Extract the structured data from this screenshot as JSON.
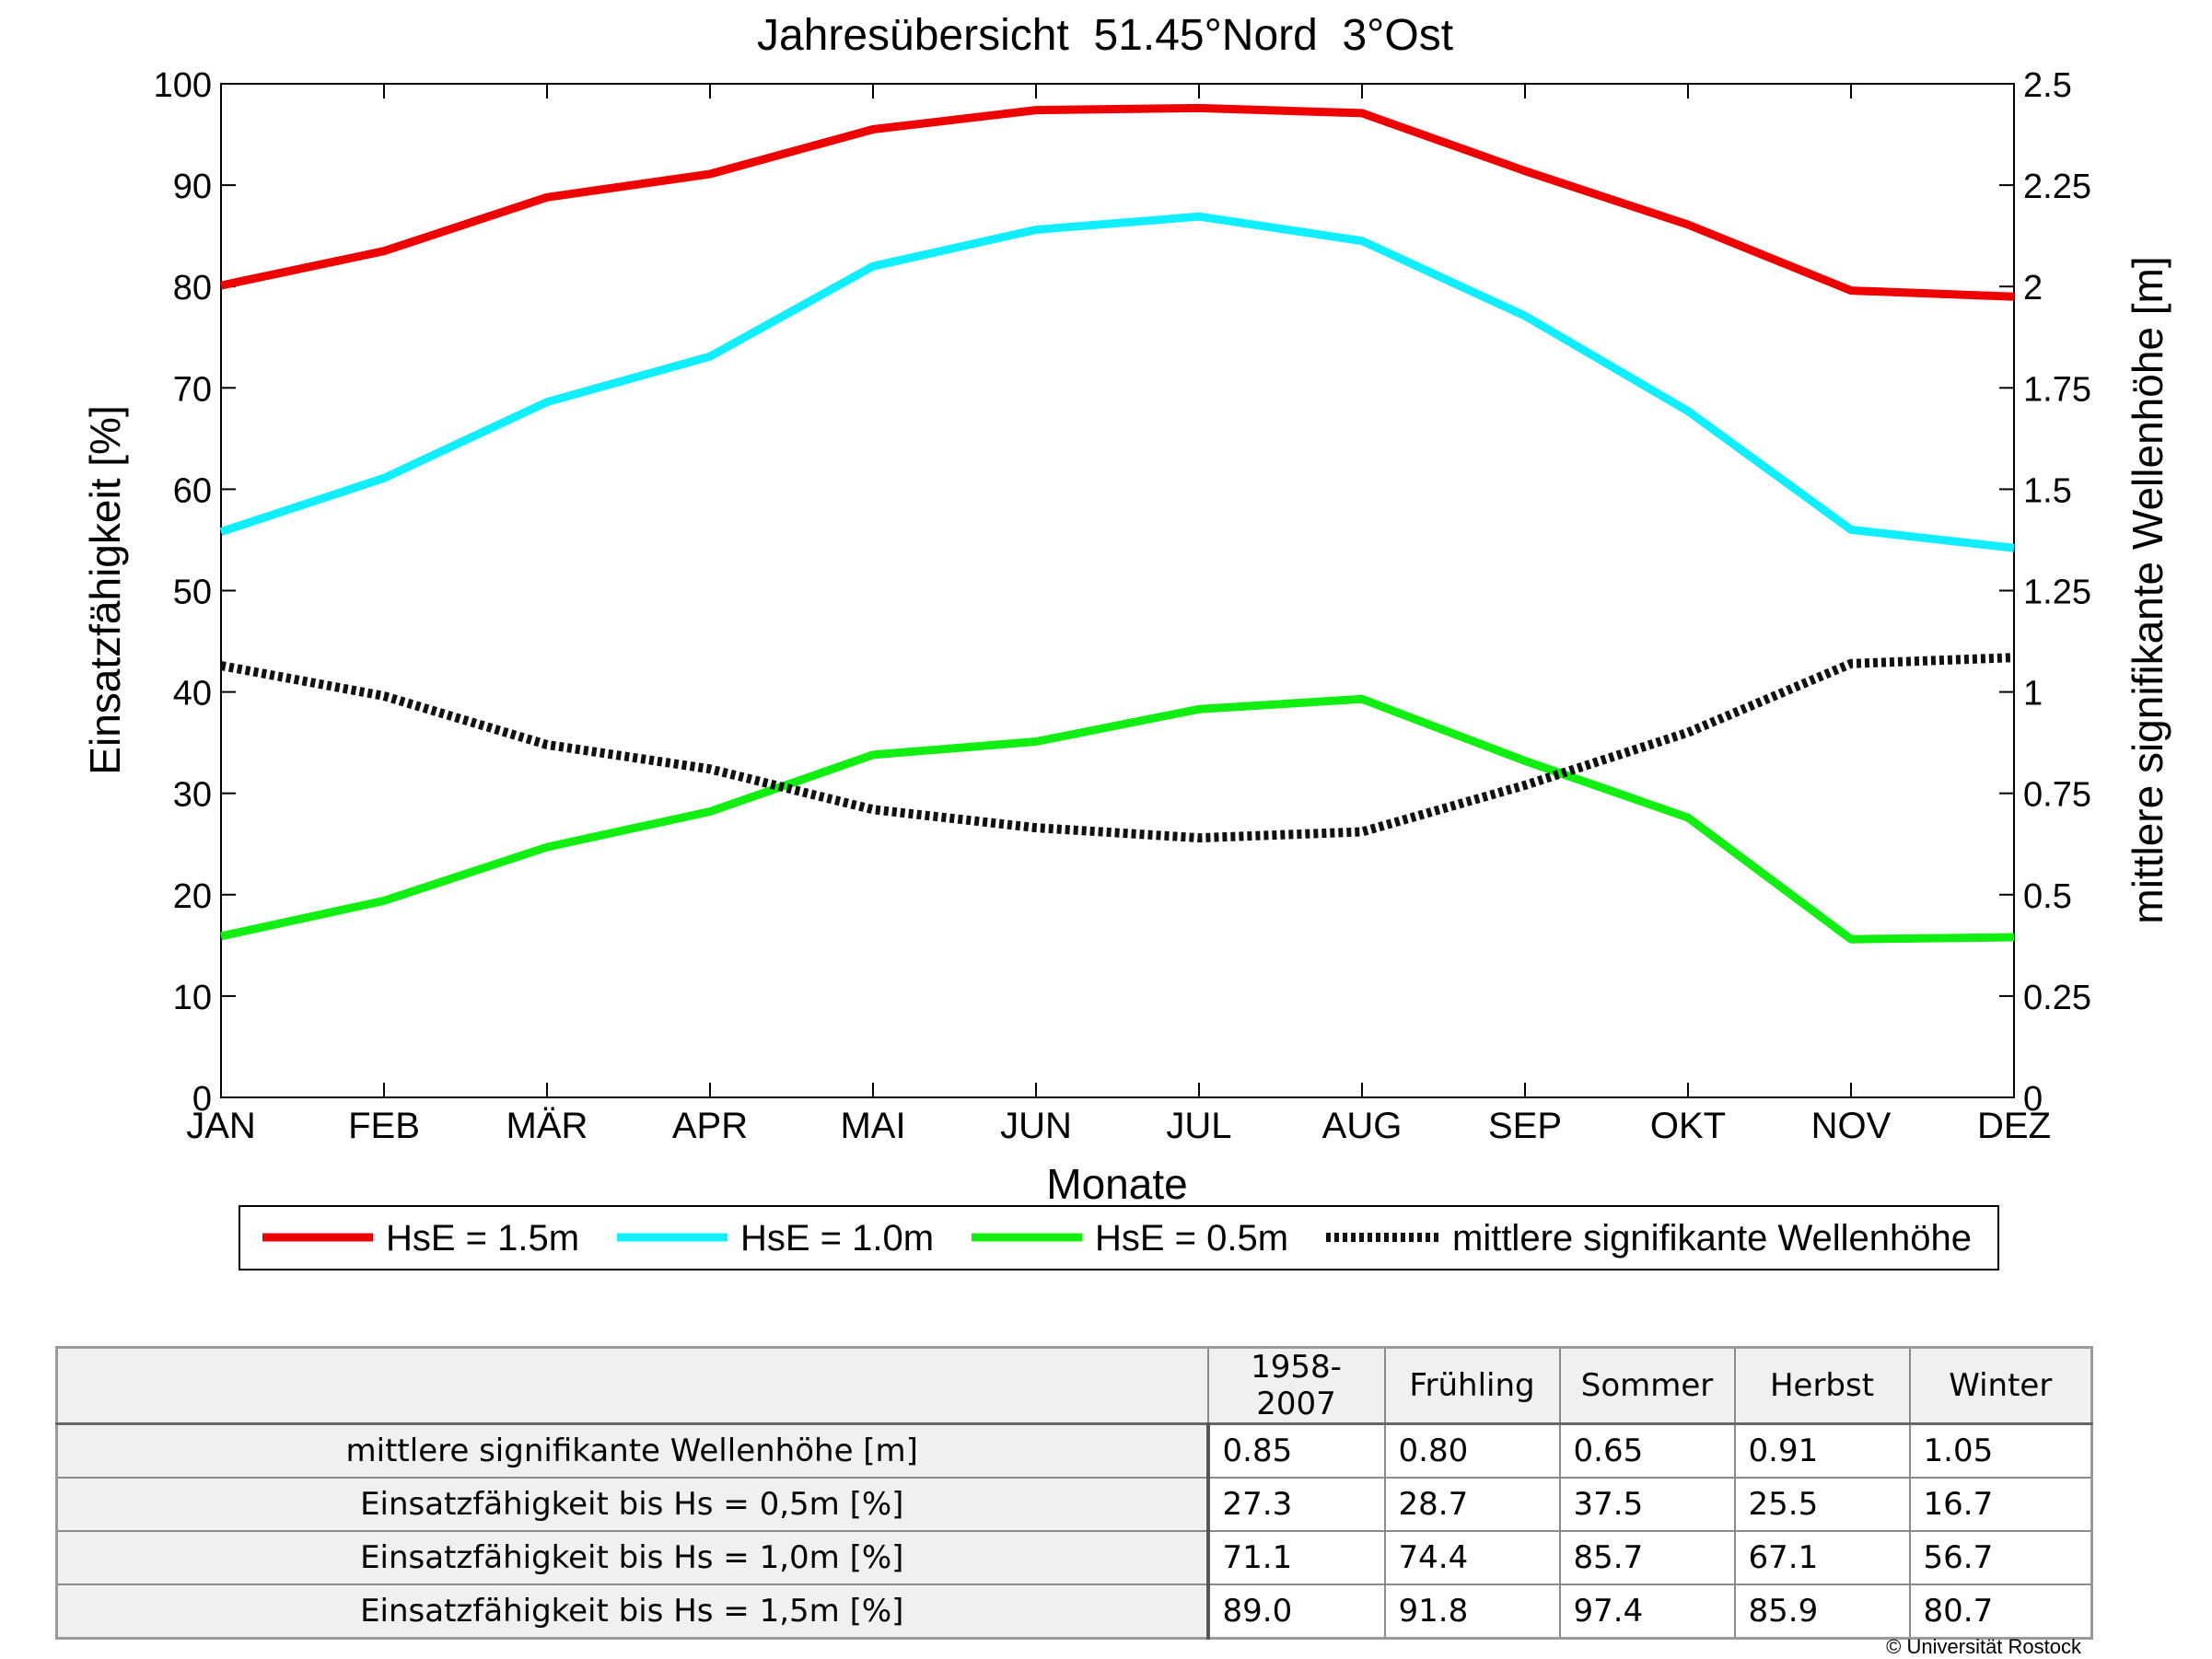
{
  "chart_data": {
    "type": "line",
    "title": "Jahresübersicht  51.45°Nord  3°Ost",
    "xlabel": "Monate",
    "ylabel": "Einsatzfähigkeit [%]",
    "ylabel_right": "mittlere signifikante Wellenhöhe [m]",
    "categories": [
      "JAN",
      "FEB",
      "MÄR",
      "APR",
      "MAI",
      "JUN",
      "JUL",
      "AUG",
      "SEP",
      "OKT",
      "NOV",
      "DEZ"
    ],
    "ylim": [
      0,
      100
    ],
    "yticks": [
      0,
      10,
      20,
      30,
      40,
      50,
      60,
      70,
      80,
      90,
      100
    ],
    "ylim_right": [
      0,
      2.5
    ],
    "yticks_right": [
      "0",
      "0.25",
      "0.5",
      "0.75",
      "1",
      "1.25",
      "1.5",
      "1.75",
      "2",
      "2.25",
      "2.5"
    ],
    "grid": false,
    "legend_position": "bottom",
    "series": [
      {
        "name": "HsE = 1.5m",
        "axis": "left",
        "color": "#ee0000",
        "style": "solid",
        "values": [
          80.1,
          83.5,
          88.8,
          91.1,
          95.5,
          97.4,
          97.6,
          97.1,
          91.4,
          86.1,
          79.6,
          79.0
        ]
      },
      {
        "name": "HsE = 1.0m",
        "axis": "left",
        "color": "#11eeff",
        "style": "solid",
        "values": [
          55.8,
          61.1,
          68.6,
          73.1,
          82.0,
          85.6,
          86.9,
          84.5,
          77.1,
          67.7,
          56.0,
          54.2
        ]
      },
      {
        "name": "HsE = 0.5m",
        "axis": "left",
        "color": "#11ee11",
        "style": "solid",
        "values": [
          15.9,
          19.4,
          24.7,
          28.2,
          33.8,
          35.1,
          38.3,
          39.3,
          33.2,
          27.6,
          15.6,
          15.8
        ]
      },
      {
        "name": "mittlere signifikante Wellenhöhe",
        "axis": "right",
        "color": "#111111",
        "style": "dotted",
        "values": [
          1.065,
          0.99,
          0.87,
          0.81,
          0.71,
          0.665,
          0.64,
          0.655,
          0.77,
          0.9,
          1.07,
          1.085
        ]
      }
    ]
  },
  "table": {
    "headers": [
      "1958-2007",
      "Frühling",
      "Sommer",
      "Herbst",
      "Winter"
    ],
    "rows": [
      {
        "label": "mittlere signifikante Wellenhöhe [m]",
        "values": [
          "0.85",
          "0.80",
          "0.65",
          "0.91",
          "1.05"
        ]
      },
      {
        "label": "Einsatzfähigkeit bis Hs = 0,5m [%]",
        "values": [
          "27.3",
          "28.7",
          "37.5",
          "25.5",
          "16.7"
        ]
      },
      {
        "label": "Einsatzfähigkeit bis Hs = 1,0m [%]",
        "values": [
          "71.1",
          "74.4",
          "85.7",
          "67.1",
          "56.7"
        ]
      },
      {
        "label": "Einsatzfähigkeit bis Hs = 1,5m [%]",
        "values": [
          "89.0",
          "91.8",
          "97.4",
          "85.9",
          "80.7"
        ]
      }
    ]
  },
  "footer": {
    "copyright": "© Universität Rostock"
  }
}
